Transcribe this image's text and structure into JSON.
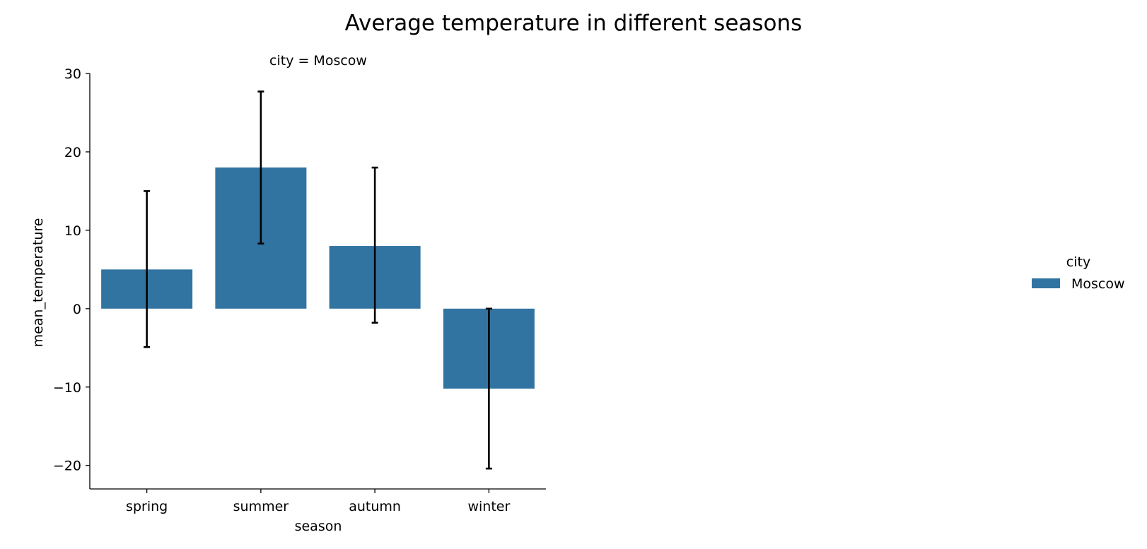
{
  "chart_data": {
    "type": "bar",
    "title": "Average temperature in different seasons",
    "facet_title": "city = Moscow",
    "xlabel": "season",
    "ylabel": "mean_temperature",
    "categories": [
      "spring",
      "summer",
      "autumn",
      "winter"
    ],
    "series": [
      {
        "name": "Moscow",
        "values": [
          5,
          18,
          8,
          -10.2
        ],
        "error_low": [
          -4.9,
          8.3,
          -1.8,
          -20.4
        ],
        "error_high": [
          15,
          27.7,
          18,
          0
        ],
        "color": "#3274a1"
      }
    ],
    "ylim": [
      -23,
      30
    ],
    "yticks": [
      -20,
      -10,
      0,
      10,
      20,
      30
    ],
    "ytick_labels": [
      "−20",
      "−10",
      "0",
      "10",
      "20",
      "30"
    ],
    "grid": false,
    "legend": {
      "title": "city",
      "placement": "right",
      "entries": [
        "Moscow"
      ]
    }
  }
}
